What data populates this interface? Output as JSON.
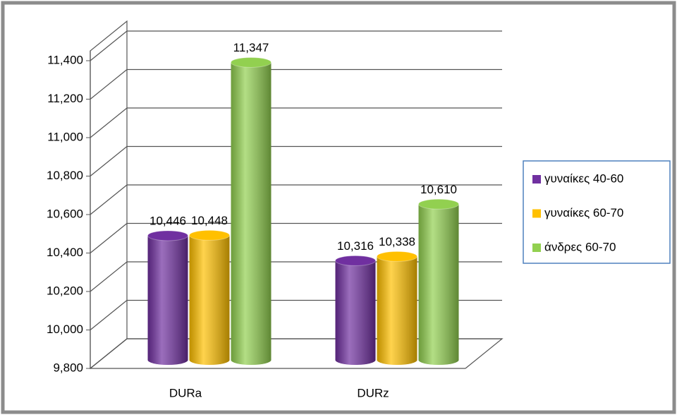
{
  "chart_data": {
    "type": "bar",
    "categories": [
      "DURa",
      "DURz"
    ],
    "series": [
      {
        "name": "γυναίκες 40-60",
        "color": "#7030a0",
        "values": [
          10446,
          10316
        ],
        "value_labels": [
          "10,446",
          "10,316"
        ]
      },
      {
        "name": "γυναίκες 60-70",
        "color": "#ffc000",
        "values": [
          10448,
          10338
        ],
        "value_labels": [
          "10,448",
          "10,338"
        ]
      },
      {
        "name": "άνδρες 60-70",
        "color": "#92d050",
        "values": [
          11347,
          10610
        ],
        "value_labels": [
          "11,347",
          "10,610"
        ]
      }
    ],
    "ylim": [
      9800,
      11400
    ],
    "yticks": [
      {
        "value": 9800,
        "label": "9,800"
      },
      {
        "value": 10000,
        "label": "10,000"
      },
      {
        "value": 10200,
        "label": "10,200"
      },
      {
        "value": 10400,
        "label": "10,400"
      },
      {
        "value": 10600,
        "label": "10,600"
      },
      {
        "value": 10800,
        "label": "10,800"
      },
      {
        "value": 11000,
        "label": "11,000"
      },
      {
        "value": 11200,
        "label": "11,200"
      },
      {
        "value": 11400,
        "label": "11,400"
      }
    ],
    "grid": true,
    "legend": "right"
  }
}
